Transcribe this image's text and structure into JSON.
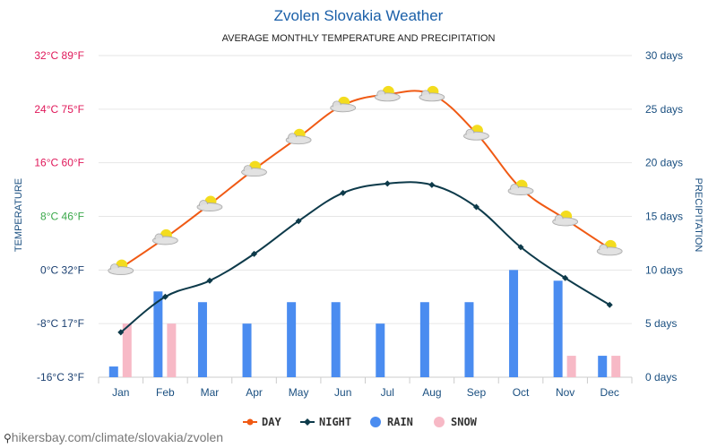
{
  "header": {
    "title": "Zvolen Slovakia Weather",
    "subtitle": "AVERAGE MONTHLY TEMPERATURE AND PRECIPITATION"
  },
  "footer": {
    "url": "hikersbay.com/climate/slovakia/zvolen"
  },
  "colors": {
    "day": "#f05a14",
    "night": "#0d3a4a",
    "rain": "#4a8cf0",
    "snow": "#f7b9c6",
    "grid": "#e6e6e6",
    "tick_hot": "#e0185a",
    "tick_mild": "#3aa84a",
    "tick_cold": "#1a3f70"
  },
  "chart_data": {
    "type": "line+bar",
    "title": "Zvolen Slovakia Weather",
    "subtitle": "AVERAGE MONTHLY TEMPERATURE AND PRECIPITATION",
    "categories": [
      "Jan",
      "Feb",
      "Mar",
      "Apr",
      "May",
      "Jun",
      "Jul",
      "Aug",
      "Sep",
      "Oct",
      "Nov",
      "Dec"
    ],
    "y_left": {
      "label": "TEMPERATURE",
      "unit": "°C",
      "ylim": [
        -16,
        32
      ],
      "ticks": [
        {
          "value": 32,
          "label": "32°C 89°F"
        },
        {
          "value": 24,
          "label": "24°C 75°F"
        },
        {
          "value": 16,
          "label": "16°C 60°F"
        },
        {
          "value": 8,
          "label": "8°C 46°F"
        },
        {
          "value": 0,
          "label": "0°C 32°F"
        },
        {
          "value": -8,
          "label": "-8°C 17°F"
        },
        {
          "value": -16,
          "label": "-16°C 3°F"
        }
      ]
    },
    "y_right": {
      "label": "PRECIPITATION",
      "unit": "days",
      "ylim": [
        0,
        30
      ],
      "ticks": [
        {
          "value": 30,
          "label": "30 days"
        },
        {
          "value": 25,
          "label": "25 days"
        },
        {
          "value": 20,
          "label": "20 days"
        },
        {
          "value": 15,
          "label": "15 days"
        },
        {
          "value": 10,
          "label": "10 days"
        },
        {
          "value": 5,
          "label": "5 days"
        },
        {
          "value": 0,
          "label": "0 days"
        }
      ]
    },
    "series": [
      {
        "name": "DAY",
        "type": "line",
        "axis": "left",
        "values": [
          0.3,
          4.8,
          9.8,
          15.0,
          19.8,
          24.6,
          26.2,
          26.2,
          20.4,
          12.2,
          7.6,
          3.2
        ]
      },
      {
        "name": "NIGHT",
        "type": "line",
        "axis": "left",
        "values": [
          -9.3,
          -4.0,
          -1.6,
          2.4,
          7.3,
          11.5,
          12.9,
          12.7,
          9.4,
          3.4,
          -1.2,
          -5.2
        ]
      },
      {
        "name": "RAIN",
        "type": "bar",
        "axis": "right",
        "values": [
          1,
          8,
          7,
          5,
          7,
          7,
          5,
          7,
          7,
          10,
          9,
          2
        ]
      },
      {
        "name": "SNOW",
        "type": "bar",
        "axis": "right",
        "values": [
          5,
          5,
          0,
          0,
          0,
          0,
          0,
          0,
          0,
          0,
          2,
          2
        ]
      }
    ],
    "legend": {
      "position": "bottom-center",
      "items": [
        {
          "label": "DAY",
          "marker": "line-dot"
        },
        {
          "label": "NIGHT",
          "marker": "line-diamond"
        },
        {
          "label": "RAIN",
          "marker": "circle"
        },
        {
          "label": "SNOW",
          "marker": "circle"
        }
      ]
    },
    "weather_icons": [
      "partly-cloudy-icon",
      "partly-cloudy-icon",
      "partly-cloudy-icon",
      "partly-cloudy-icon",
      "partly-cloudy-icon",
      "partly-cloudy-icon",
      "partly-cloudy-icon",
      "partly-cloudy-icon",
      "partly-cloudy-icon",
      "partly-cloudy-icon",
      "partly-cloudy-icon",
      "partly-cloudy-icon"
    ]
  }
}
